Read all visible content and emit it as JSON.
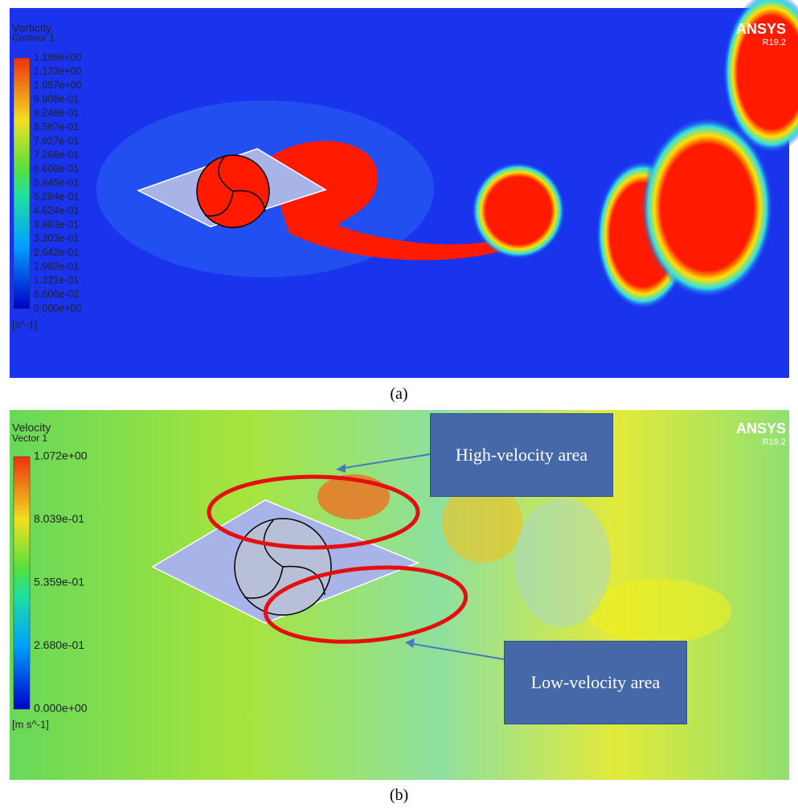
{
  "panels": [
    {
      "legend_title": "Vorticity",
      "legend_subtitle": "Contour 1",
      "legend_ticks": [
        "1.189e+00",
        "1.123e+00",
        "1.057e+00",
        "9.908e-01",
        "9.248e-01",
        "8.587e-01",
        "7.927e-01",
        "7.266e-01",
        "6.606e-01",
        "5.945e-01",
        "5.284e-01",
        "4.624e-01",
        "3.963e-01",
        "3.303e-01",
        "2.642e-01",
        "1.982e-01",
        "1.321e-01",
        "6.606e-02",
        "0.000e+00"
      ],
      "unit": "[s^-1]",
      "brand": "ANSYS",
      "version": "R19.2",
      "caption": "(a)"
    },
    {
      "legend_title": "Velocity",
      "legend_subtitle": "Vector 1",
      "legend_ticks": [
        "1.072e+00",
        "8.039e-01",
        "5.359e-01",
        "2.680e-01",
        "0.000e+00"
      ],
      "unit": "[m s^-1]",
      "brand": "ANSYS",
      "version": "R19.2",
      "caption": "(b)",
      "annotations": [
        "High-velocity area",
        "Low-velocity area"
      ]
    }
  ]
}
